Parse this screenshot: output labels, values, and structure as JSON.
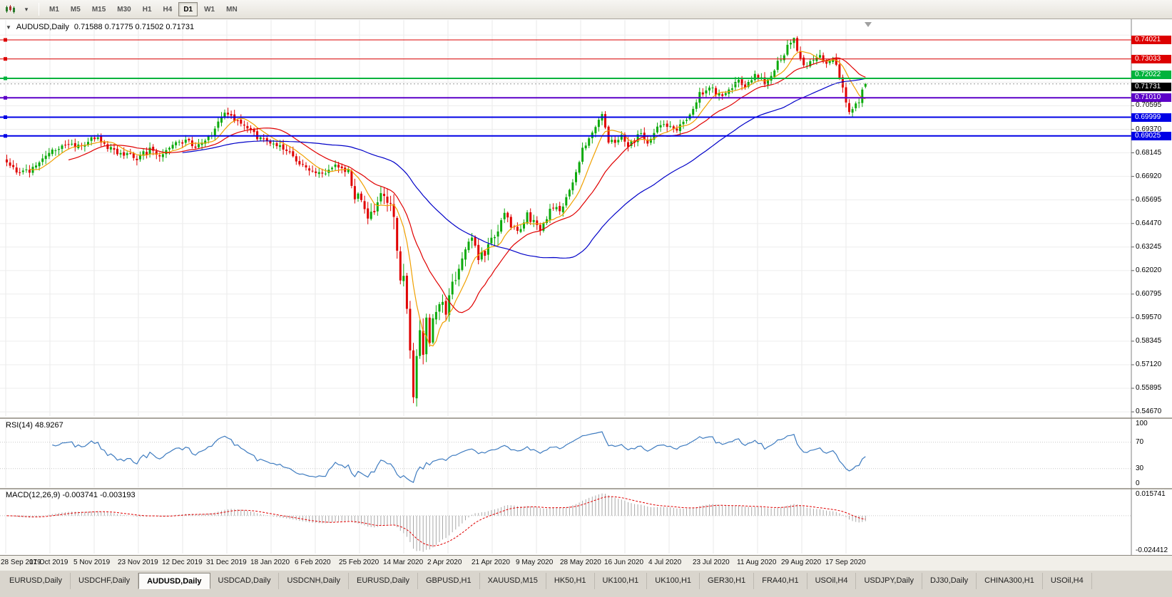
{
  "toolbar": {
    "timeframes": [
      "M1",
      "M5",
      "M15",
      "M30",
      "H1",
      "H4",
      "D1",
      "W1",
      "MN"
    ],
    "active_timeframe": "D1"
  },
  "icons": {
    "collapse_chart": "▼",
    "chart_type_dropdown": "▾"
  },
  "header": {
    "symbol_title": "AUDUSD,Daily",
    "ohlc": "0.71588 0.71775 0.71502 0.71731"
  },
  "indicators": {
    "rsi_label": "RSI(14) 48.9267",
    "macd_label": "MACD(12,26,9) -0.003741 -0.003193"
  },
  "tabs": {
    "active_index": 2,
    "items": [
      "EURUSD,Daily",
      "USDCHF,Daily",
      "AUDUSD,Daily",
      "USDCAD,Daily",
      "USDCNH,Daily",
      "EURUSD,Daily",
      "GBPUSD,H1",
      "XAUUSD,M15",
      "HK50,H1",
      "UK100,H1",
      "UK100,H1",
      "GER30,H1",
      "FRA40,H1",
      "USOil,H4",
      "USDJPY,Daily",
      "DJ30,Daily",
      "CHINA300,H1",
      "USOil,H4"
    ]
  },
  "chart_data": {
    "type": "candlestick",
    "title": "AUDUSD,Daily",
    "ohlc": {
      "open": 0.71588,
      "high": 0.71775,
      "low": 0.71502,
      "close": 0.71731
    },
    "x_labels": [
      "28 Sep 2019",
      "17 Oct 2019",
      "5 Nov 2019",
      "23 Nov 2019",
      "12 Dec 2019",
      "31 Dec 2019",
      "18 Jan 2020",
      "6 Feb 2020",
      "25 Feb 2020",
      "14 Mar 2020",
      "2 Apr 2020",
      "21 Apr 2020",
      "9 May 2020",
      "28 May 2020",
      "16 Jun 2020",
      "4 Jul 2020",
      "23 Jul 2020",
      "11 Aug 2020",
      "29 Aug 2020",
      "17 Sep 2020"
    ],
    "y_axis": {
      "range": [
        0.5445,
        0.7506
      ],
      "tick_step": 0.01225,
      "ticks": [
        "0.70595",
        "0.69370",
        "0.68145",
        "0.66920",
        "0.65695",
        "0.64470",
        "0.63245",
        "0.62020",
        "0.60795",
        "0.59570",
        "0.58345",
        "0.57120",
        "0.55895",
        "0.54670"
      ]
    },
    "horizontal_lines": [
      {
        "price": 0.74021,
        "color": "#dd0000",
        "width": 1
      },
      {
        "price": 0.73033,
        "color": "#dd0000",
        "width": 1
      },
      {
        "price": 0.72022,
        "color": "#00b33c",
        "width": 2
      },
      {
        "price": 0.7101,
        "color": "#5c00c8",
        "width": 2
      },
      {
        "price": 0.69999,
        "color": "#0000e6",
        "width": 2
      },
      {
        "price": 0.69025,
        "color": "#0000e6",
        "width": 2
      }
    ],
    "current_price": 0.71731,
    "candle_count": 265,
    "up_color": "#0caa0c",
    "down_color": "#e00000",
    "close_anchors": [
      [
        0,
        0.6765
      ],
      [
        4,
        0.67
      ],
      [
        8,
        0.6735
      ],
      [
        13,
        0.682
      ],
      [
        18,
        0.6855
      ],
      [
        23,
        0.684
      ],
      [
        27,
        0.69
      ],
      [
        31,
        0.6845
      ],
      [
        36,
        0.6805
      ],
      [
        40,
        0.679
      ],
      [
        44,
        0.683
      ],
      [
        48,
        0.68
      ],
      [
        53,
        0.688
      ],
      [
        58,
        0.6855
      ],
      [
        62,
        0.689
      ],
      [
        67,
        0.702
      ],
      [
        70,
        0.6985
      ],
      [
        74,
        0.693
      ],
      [
        80,
        0.687
      ],
      [
        85,
        0.684
      ],
      [
        89,
        0.677
      ],
      [
        93,
        0.672
      ],
      [
        97,
        0.6695
      ],
      [
        101,
        0.674
      ],
      [
        105,
        0.6715
      ],
      [
        107,
        0.66
      ],
      [
        109,
        0.656
      ],
      [
        111,
        0.649
      ],
      [
        113,
        0.653
      ],
      [
        115,
        0.663
      ],
      [
        117,
        0.658
      ],
      [
        119,
        0.649
      ],
      [
        120,
        0.631
      ],
      [
        121,
        0.618
      ],
      [
        122,
        0.613
      ],
      [
        123,
        0.598
      ],
      [
        124,
        0.578
      ],
      [
        125,
        0.555
      ],
      [
        126,
        0.577
      ],
      [
        127,
        0.59
      ],
      [
        128,
        0.58
      ],
      [
        129,
        0.594
      ],
      [
        130,
        0.586
      ],
      [
        131,
        0.596
      ],
      [
        133,
        0.605
      ],
      [
        135,
        0.599
      ],
      [
        137,
        0.613
      ],
      [
        139,
        0.621
      ],
      [
        141,
        0.631
      ],
      [
        143,
        0.636
      ],
      [
        145,
        0.628
      ],
      [
        147,
        0.63
      ],
      [
        149,
        0.636
      ],
      [
        151,
        0.643
      ],
      [
        153,
        0.651
      ],
      [
        155,
        0.644
      ],
      [
        157,
        0.64
      ],
      [
        160,
        0.649
      ],
      [
        162,
        0.645
      ],
      [
        164,
        0.642
      ],
      [
        166,
        0.648
      ],
      [
        168,
        0.654
      ],
      [
        170,
        0.65
      ],
      [
        173,
        0.663
      ],
      [
        175,
        0.67
      ],
      [
        177,
        0.683
      ],
      [
        179,
        0.69
      ],
      [
        181,
        0.696
      ],
      [
        183,
        0.701
      ],
      [
        185,
        0.688
      ],
      [
        187,
        0.686
      ],
      [
        189,
        0.692
      ],
      [
        191,
        0.685
      ],
      [
        193,
        0.688
      ],
      [
        195,
        0.692
      ],
      [
        197,
        0.687
      ],
      [
        200,
        0.694
      ],
      [
        203,
        0.696
      ],
      [
        206,
        0.693
      ],
      [
        209,
        0.699
      ],
      [
        213,
        0.712
      ],
      [
        216,
        0.716
      ],
      [
        219,
        0.711
      ],
      [
        222,
        0.715
      ],
      [
        225,
        0.719
      ],
      [
        227,
        0.716
      ],
      [
        230,
        0.723
      ],
      [
        233,
        0.718
      ],
      [
        236,
        0.725
      ],
      [
        240,
        0.7365
      ],
      [
        242,
        0.7402
      ],
      [
        244,
        0.73
      ],
      [
        246,
        0.726
      ],
      [
        248,
        0.73
      ],
      [
        250,
        0.732
      ],
      [
        252,
        0.729
      ],
      [
        254,
        0.731
      ],
      [
        256,
        0.721
      ],
      [
        258,
        0.708
      ],
      [
        259,
        0.704
      ],
      [
        260,
        0.703
      ],
      [
        261,
        0.706
      ],
      [
        262,
        0.709
      ],
      [
        263,
        0.713
      ],
      [
        264,
        0.7173
      ]
    ],
    "moving_averages": [
      {
        "period": 8,
        "color": "#f0a000"
      },
      {
        "period": 20,
        "color": "#e00000"
      },
      {
        "period": 55,
        "color": "#0000c8"
      }
    ],
    "rsi": {
      "period": 14,
      "current": 48.9267,
      "color": "#3f7cc0",
      "levels": [
        70,
        30
      ],
      "axis_labels": [
        "100",
        "70",
        "30",
        "0"
      ]
    },
    "macd": {
      "fast": 12,
      "slow": 26,
      "signal": 9,
      "value": -0.003741,
      "signal_value": -0.003193,
      "axis_labels": [
        "0.015741",
        "-0.024412"
      ],
      "histogram_color": "#a8a8a8",
      "signal_color": "#e00000"
    }
  }
}
